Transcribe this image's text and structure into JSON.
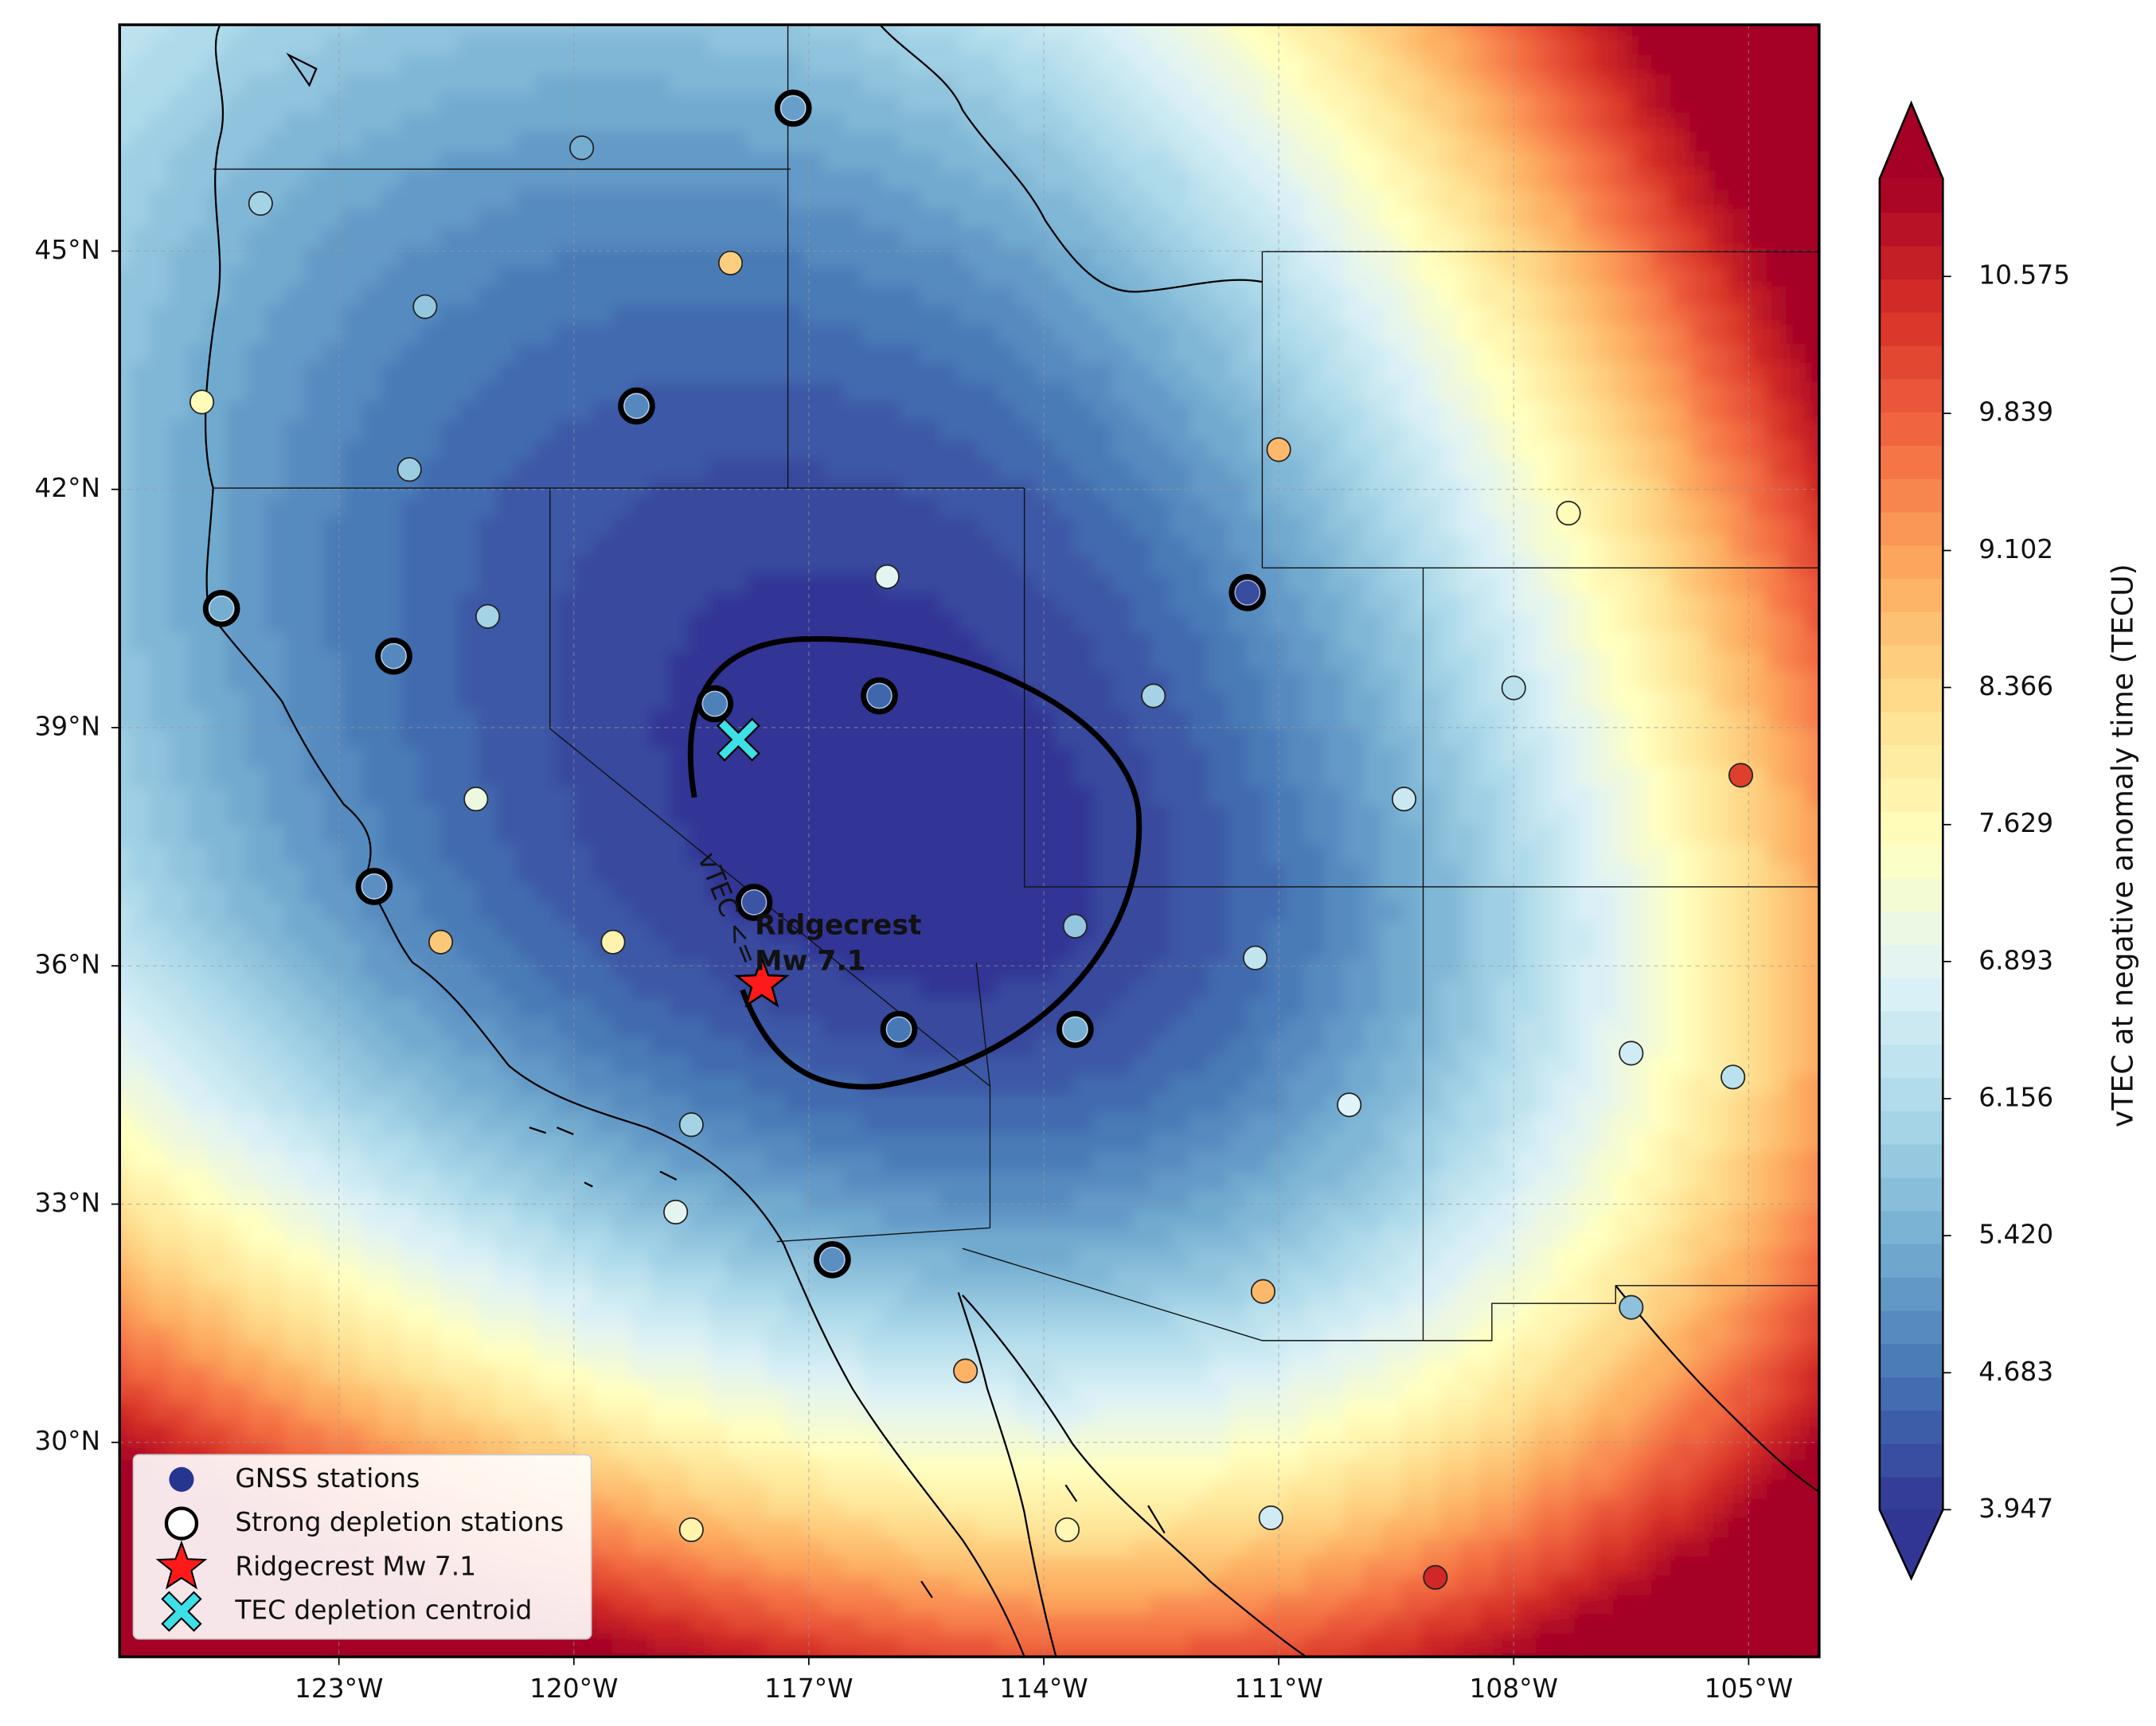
{
  "chart_data": {
    "type": "map",
    "xlim": [
      -125.8,
      -104.1
    ],
    "ylim": [
      27.3,
      47.85
    ],
    "xticks": [
      {
        "value": -123,
        "label": "123°W"
      },
      {
        "value": -120,
        "label": "120°W"
      },
      {
        "value": -117,
        "label": "117°W"
      },
      {
        "value": -114,
        "label": "114°W"
      },
      {
        "value": -111,
        "label": "111°W"
      },
      {
        "value": -108,
        "label": "108°W"
      },
      {
        "value": -105,
        "label": "105°W"
      }
    ],
    "yticks": [
      {
        "value": 30,
        "label": "30°N"
      },
      {
        "value": 33,
        "label": "33°N"
      },
      {
        "value": 36,
        "label": "36°N"
      },
      {
        "value": 39,
        "label": "39°N"
      },
      {
        "value": 42,
        "label": "42°N"
      },
      {
        "value": 45,
        "label": "45°N"
      }
    ],
    "grid": true,
    "legend": "lower left",
    "colorbar": {
      "label": "vTEC at negative anomaly time (TECU)",
      "lim": [
        3.947,
        11.1
      ],
      "ticks": [
        3.947,
        4.683,
        {
          "value": 5.42,
          "label": "5.420"
        },
        6.156,
        6.893,
        7.629,
        8.366,
        9.102,
        9.839,
        10.575
      ],
      "colormap": "RdYlBu_r"
    },
    "annotations": [
      "Ridgecrest",
      "Mw 7.1",
      "vTEC <="
    ],
    "series": [
      {
        "name": "GNSS stations",
        "color": "#26358f",
        "x": [
          -119.9,
          -124.0,
          -118.0,
          -121.9,
          -124.75,
          -122.1,
          -111.0,
          -107.3,
          -116.0,
          -121.1,
          -112.6,
          -108.0,
          -105.1,
          -121.25,
          -109.4,
          -113.6,
          -111.3,
          -121.7,
          -119.5,
          -106.5,
          -105.2,
          -110.1,
          -118.5,
          -118.7,
          -111.2,
          -106.5,
          -115.0,
          -118.5,
          -113.7,
          -111.1,
          -109.0
        ],
        "y": [
          46.3,
          45.6,
          44.85,
          44.3,
          43.1,
          42.25,
          42.5,
          41.7,
          40.9,
          40.4,
          39.4,
          39.5,
          38.4,
          38.1,
          38.1,
          36.5,
          36.1,
          36.3,
          36.3,
          34.9,
          34.6,
          34.25,
          34.0,
          32.9,
          31.9,
          31.7,
          30.9,
          28.9,
          28.9,
          29.05,
          28.3
        ],
        "values": [
          5.4,
          6.0,
          8.5,
          5.8,
          7.6,
          5.9,
          8.8,
          7.6,
          6.9,
          6.0,
          6.0,
          6.3,
          10.2,
          7.1,
          6.5,
          5.8,
          6.4,
          8.6,
          7.8,
          6.6,
          6.3,
          6.8,
          6.0,
          6.9,
          8.8,
          5.7,
          8.9,
          7.8,
          7.7,
          6.6,
          10.5
        ]
      },
      {
        "name": "Strong depletion stations",
        "color": "#000000",
        "x": [
          -117.2,
          -119.2,
          -124.5,
          -122.3,
          -118.2,
          -116.1,
          -111.4,
          -117.7,
          -115.85,
          -113.6,
          -122.55,
          -116.7
        ],
        "y": [
          46.8,
          43.05,
          40.5,
          39.9,
          39.3,
          39.4,
          40.7,
          36.8,
          35.2,
          35.2,
          37.0,
          32.3
        ],
        "values": [
          5.2,
          4.9,
          5.4,
          4.9,
          4.8,
          4.5,
          4.2,
          4.3,
          4.7,
          5.4,
          5.0,
          5.0
        ]
      },
      {
        "name": "Ridgecrest Mw 7.1",
        "color": "#ff1a1a",
        "x": [
          -117.6
        ],
        "y": [
          35.77
        ]
      },
      {
        "name": "TEC depletion centroid",
        "color": "#3de0e6",
        "x": [
          -117.9
        ],
        "y": [
          38.85
        ]
      }
    ]
  }
}
